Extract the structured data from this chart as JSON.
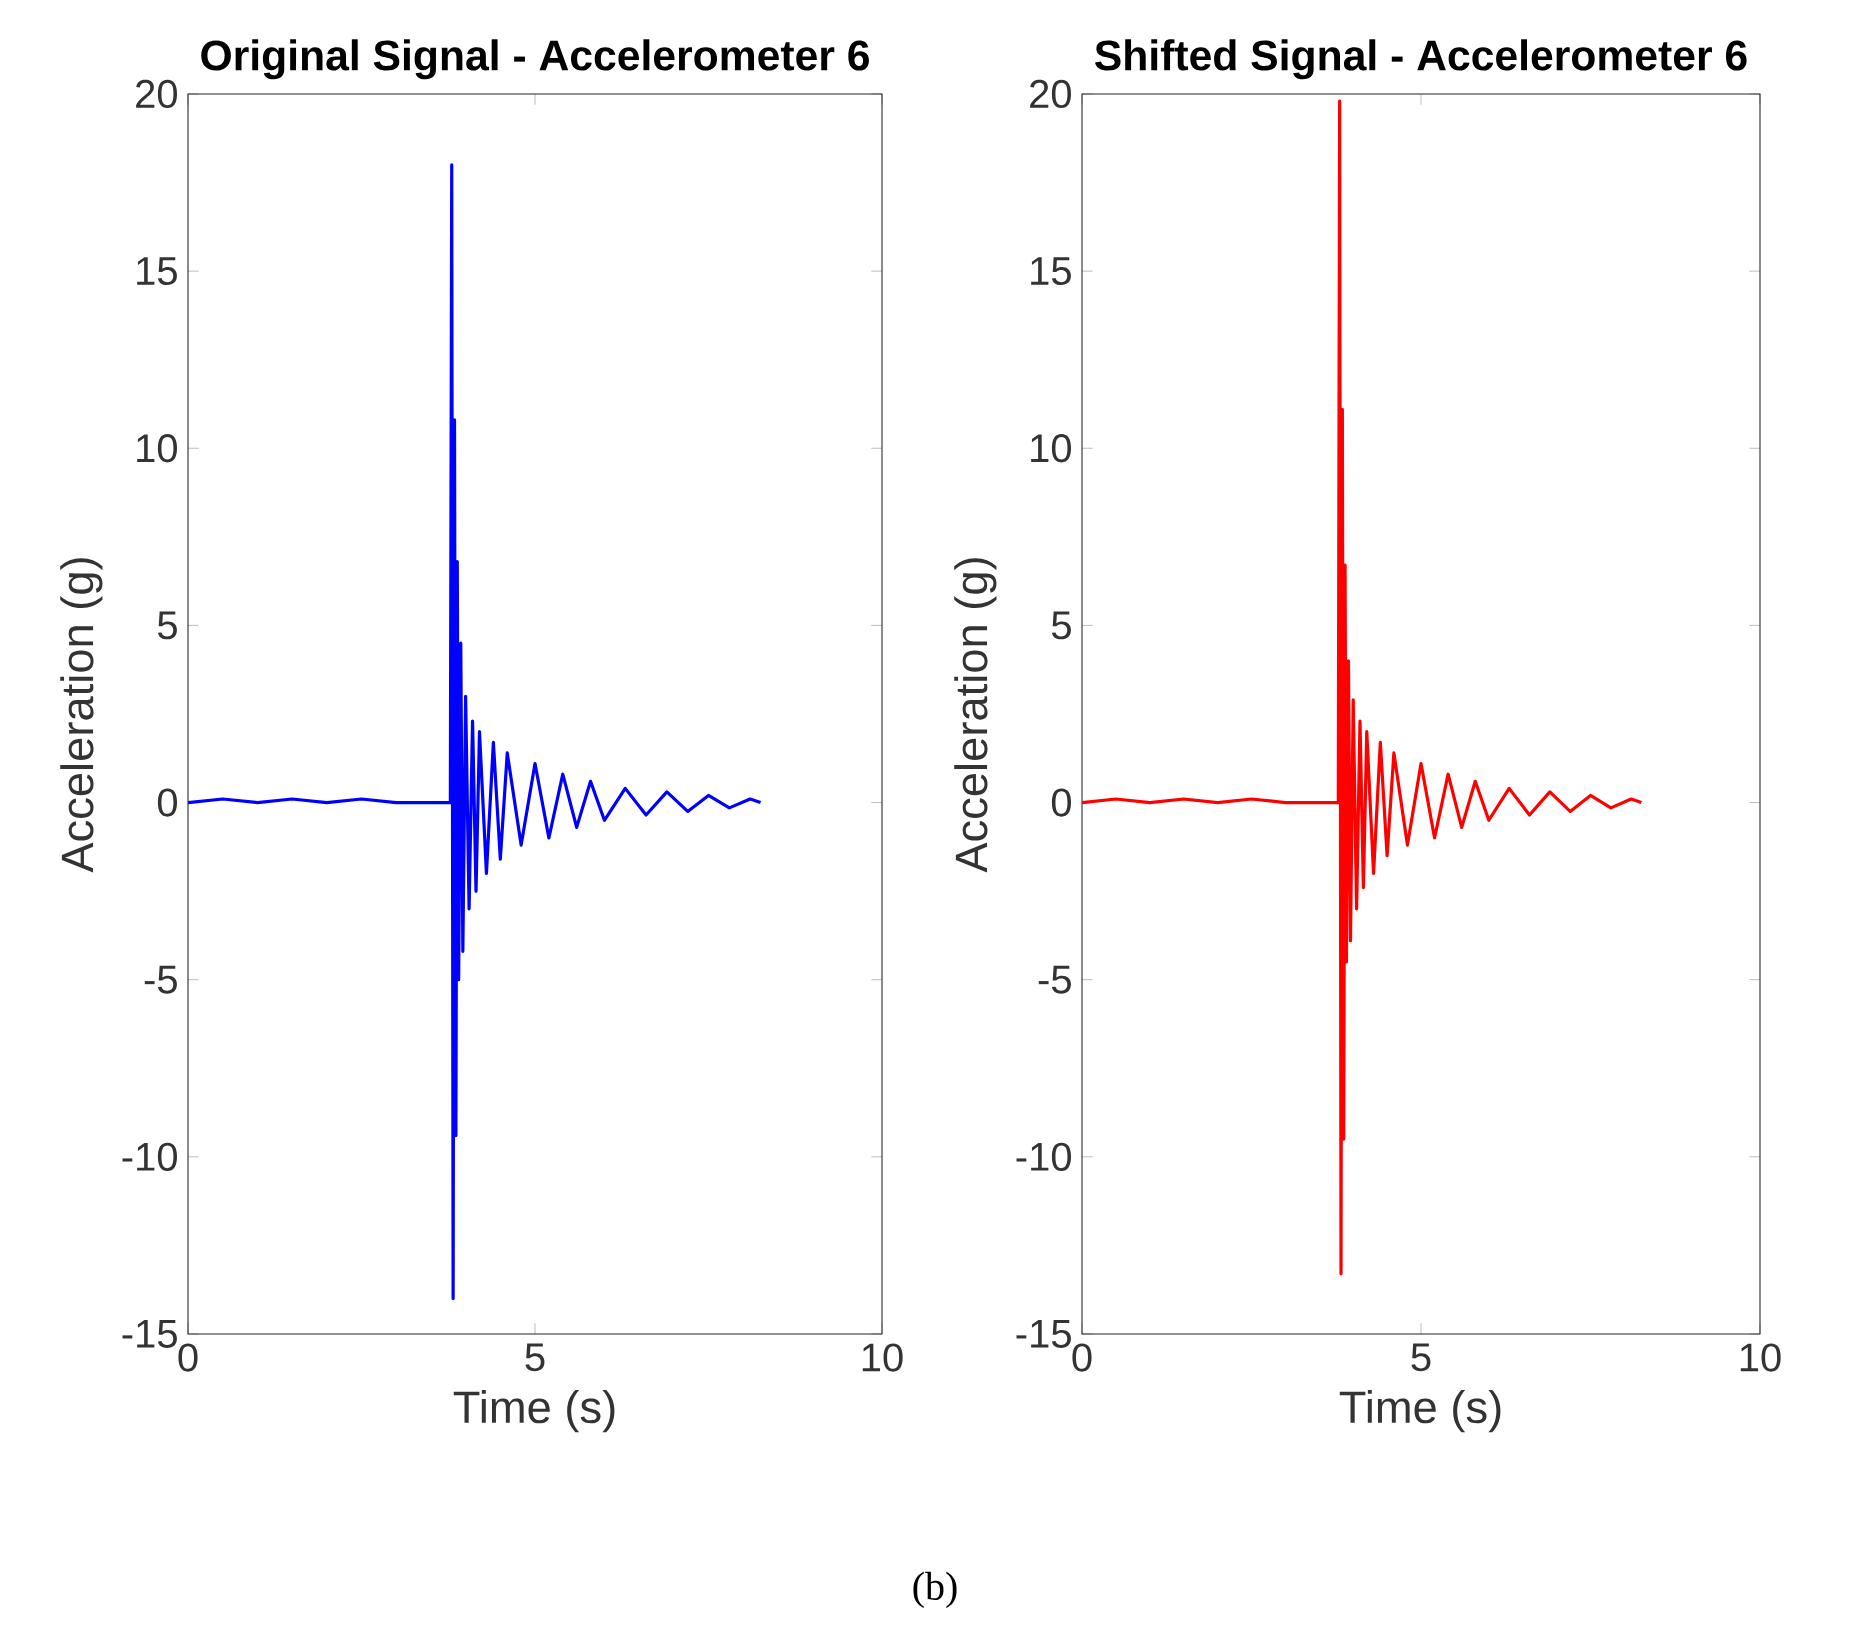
{
  "chart_data": [
    {
      "type": "line",
      "title": "Original Signal - Accelerometer 6",
      "xlabel": "Time (s)",
      "ylabel": "Acceleration (g)",
      "annotations": [
        "(b)"
      ],
      "x": [
        0,
        0.5,
        1,
        1.5,
        2,
        2.5,
        3,
        3.5,
        3.78,
        3.8,
        3.82,
        3.84,
        3.86,
        3.88,
        3.9,
        3.93,
        3.96,
        4.0,
        4.05,
        4.1,
        4.15,
        4.2,
        4.3,
        4.4,
        4.5,
        4.6,
        4.8,
        5.0,
        5.2,
        5.4,
        5.6,
        5.8,
        6.0,
        6.3,
        6.6,
        6.9,
        7.2,
        7.5,
        7.8,
        8.1,
        8.25
      ],
      "series": [
        {
          "color": "#0000ff",
          "values": [
            0,
            0.1,
            0,
            0.1,
            0,
            0.1,
            0,
            0,
            0,
            18,
            -14,
            10.8,
            -9.4,
            6.8,
            -5,
            4.5,
            -4.2,
            3,
            -3,
            2.3,
            -2.5,
            2,
            -2,
            1.7,
            -1.6,
            1.4,
            -1.2,
            1.1,
            -1,
            0.8,
            -0.7,
            0.6,
            -0.5,
            0.4,
            -0.35,
            0.3,
            -0.25,
            0.2,
            -0.15,
            0.1,
            0
          ]
        }
      ],
      "xlim": [
        0,
        10
      ],
      "ylim": [
        -15,
        20
      ],
      "xticks": [
        0,
        5,
        10
      ],
      "yticks": [
        -15,
        -10,
        -5,
        0,
        5,
        10,
        15,
        20
      ]
    },
    {
      "type": "line",
      "title": "Shifted Signal - Accelerometer 6",
      "xlabel": "Time (s)",
      "ylabel": "Acceleration (g)",
      "x": [
        0,
        0.5,
        1,
        1.5,
        2,
        2.5,
        3,
        3.5,
        3.78,
        3.8,
        3.82,
        3.84,
        3.86,
        3.88,
        3.9,
        3.93,
        3.96,
        4.0,
        4.05,
        4.1,
        4.15,
        4.2,
        4.3,
        4.4,
        4.5,
        4.6,
        4.8,
        5.0,
        5.2,
        5.4,
        5.6,
        5.8,
        6.0,
        6.3,
        6.6,
        6.9,
        7.2,
        7.5,
        7.8,
        8.1,
        8.25
      ],
      "series": [
        {
          "color": "#ff0000",
          "values": [
            0,
            0.1,
            0,
            0.1,
            0,
            0.1,
            0,
            0,
            0,
            19.8,
            -13.3,
            11.1,
            -9.5,
            6.7,
            -4.5,
            4,
            -3.9,
            2.9,
            -3,
            2.3,
            -2.4,
            2,
            -2,
            1.7,
            -1.5,
            1.4,
            -1.2,
            1.1,
            -1,
            0.8,
            -0.7,
            0.6,
            -0.5,
            0.4,
            -0.35,
            0.3,
            -0.25,
            0.2,
            -0.15,
            0.1,
            0
          ]
        }
      ],
      "xlim": [
        0,
        10
      ],
      "ylim": [
        -15,
        20
      ],
      "xticks": [
        0,
        5,
        10
      ],
      "yticks": [
        -15,
        -10,
        -5,
        0,
        5,
        10,
        15,
        20
      ]
    }
  ]
}
